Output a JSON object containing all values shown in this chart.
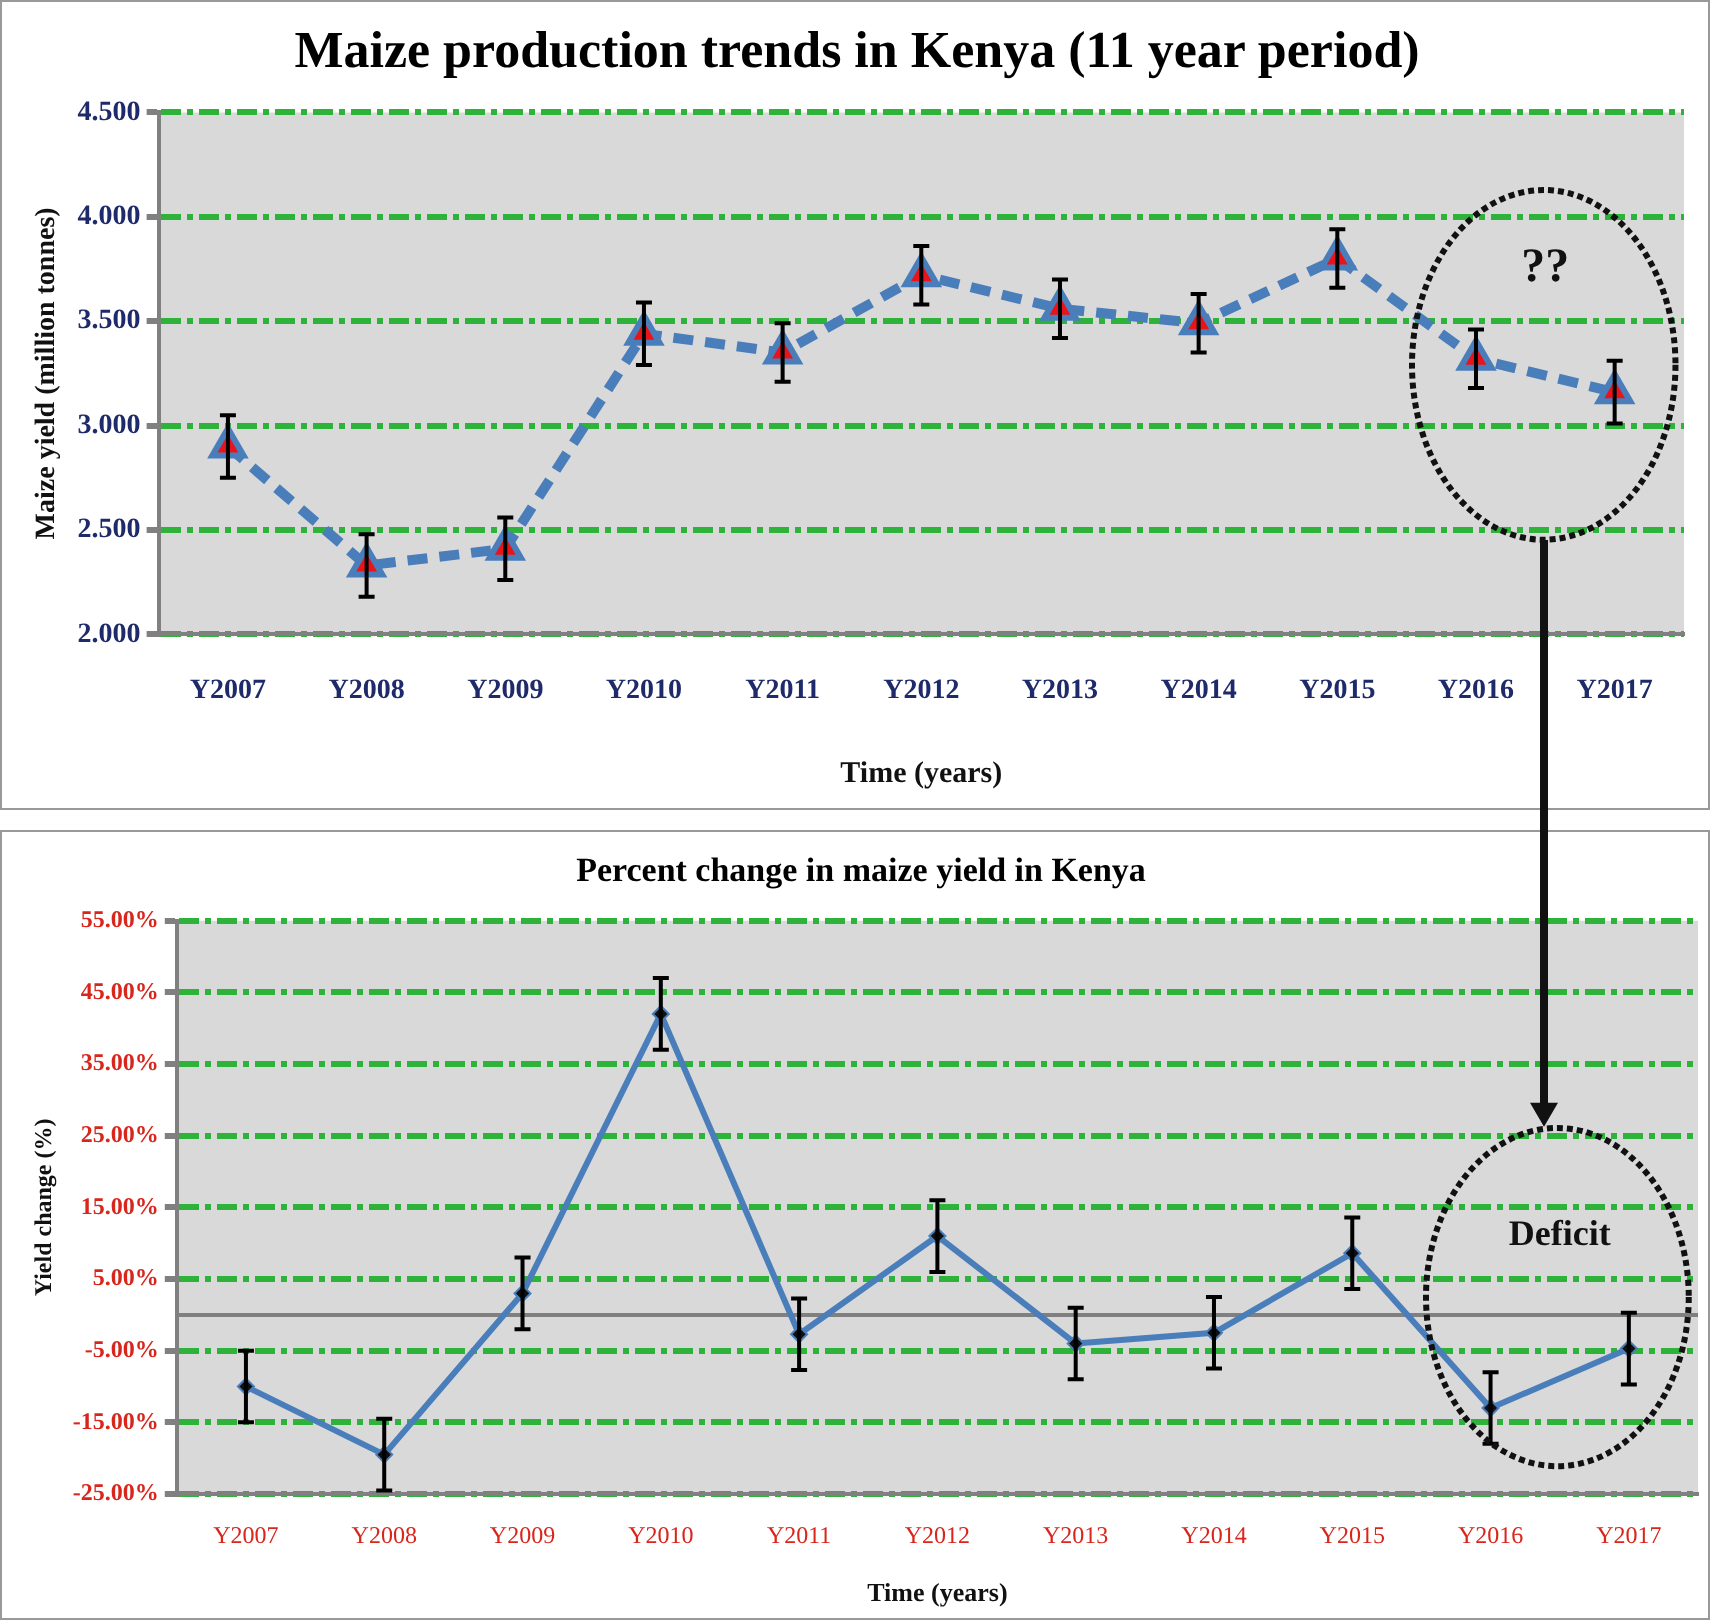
{
  "chart_data": [
    {
      "type": "line",
      "title": "Maize production trends in Kenya (11 year period)",
      "xlabel": "Time (years)",
      "ylabel": "Maize yield (million tonnes)",
      "categories": [
        "Y2007",
        "Y2008",
        "Y2009",
        "Y2010",
        "Y2011",
        "Y2012",
        "Y2013",
        "Y2014",
        "Y2015",
        "Y2016",
        "Y2017"
      ],
      "series": [
        {
          "color": "#4a7ebb",
          "values": [
            2.9,
            2.33,
            2.41,
            3.44,
            3.35,
            3.72,
            3.56,
            3.49,
            3.8,
            3.32,
            3.16
          ],
          "errors": [
            0.15,
            0.15,
            0.15,
            0.15,
            0.14,
            0.14,
            0.14,
            0.14,
            0.14,
            0.14,
            0.15
          ]
        }
      ],
      "ylim": [
        2,
        4.5
      ],
      "yticks": [
        {
          "value": 2,
          "label": "2.000"
        },
        {
          "value": 2.5,
          "label": "2.500"
        },
        {
          "value": 3,
          "label": "3.000"
        },
        {
          "value": 3.5,
          "label": "3.500"
        },
        {
          "value": 4,
          "label": "4.000"
        },
        {
          "value": 4.5,
          "label": "4.500"
        }
      ],
      "grid": "y",
      "legend": false,
      "marker": "triangle",
      "line_style": "dashed",
      "annotations": [
        "??"
      ]
    },
    {
      "type": "line",
      "title": "Percent change in maize yield in Kenya",
      "xlabel": "Time (years)",
      "ylabel": "Yield change (%)",
      "categories": [
        "Y2007",
        "Y2008",
        "Y2009",
        "Y2010",
        "Y2011",
        "Y2012",
        "Y2013",
        "Y2014",
        "Y2015",
        "Y2016",
        "Y2017"
      ],
      "series": [
        {
          "color": "#4a7ebb",
          "values": [
            -10,
            -19.5,
            3,
            42,
            -2.7,
            11,
            -4,
            -2.5,
            8.6,
            -13,
            -4.7
          ],
          "errors": [
            5,
            5,
            5,
            5,
            5,
            5,
            5,
            5,
            5,
            5,
            5
          ]
        }
      ],
      "ylim": [
        -25,
        55
      ],
      "yticks": [
        {
          "value": -25,
          "label": "-25.00%"
        },
        {
          "value": -15,
          "label": "-15.00%"
        },
        {
          "value": -5,
          "label": "-5.00%"
        },
        {
          "value": 5,
          "label": "5.00%"
        },
        {
          "value": 15,
          "label": "15.00%"
        },
        {
          "value": 25,
          "label": "25.00%"
        },
        {
          "value": 35,
          "label": "35.00%"
        },
        {
          "value": 45,
          "label": "45.00%"
        },
        {
          "value": 55,
          "label": "55.00%"
        }
      ],
      "grid": "y",
      "legend": false,
      "marker": "diamond",
      "line_style": "solid",
      "annotations": [
        "Deficit"
      ]
    }
  ]
}
